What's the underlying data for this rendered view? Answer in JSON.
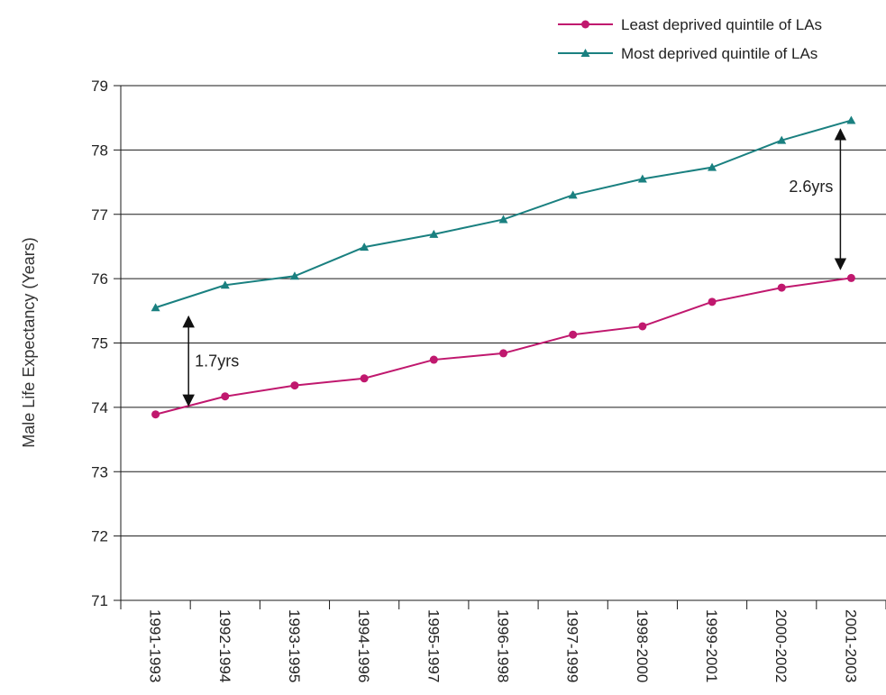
{
  "chart_data": {
    "type": "line",
    "title": "",
    "xlabel": "",
    "ylabel": "Male Life Expectancy (Years)",
    "ylim": [
      71,
      79
    ],
    "yticks": [
      71,
      72,
      73,
      74,
      75,
      76,
      77,
      78,
      79
    ],
    "grid": "horizontal",
    "legend_position": "top-right",
    "categories": [
      "1991-1993",
      "1992-1994",
      "1993-1995",
      "1994-1996",
      "1995-1997",
      "1996-1998",
      "1997-1999",
      "1998-2000",
      "1999-2001",
      "2000-2002",
      "2001-2003"
    ],
    "series": [
      {
        "name": "Least deprived quintile of LAs",
        "color": "#c0186e",
        "marker": "circle",
        "values": [
          73.89,
          74.17,
          74.34,
          74.45,
          74.74,
          74.84,
          75.13,
          75.26,
          75.64,
          75.86,
          76.01
        ]
      },
      {
        "name": "Most deprived quintile of LAs",
        "color": "#1a8080",
        "marker": "triangle",
        "values": [
          75.55,
          75.9,
          76.04,
          76.49,
          76.69,
          76.92,
          77.3,
          77.55,
          77.73,
          78.15,
          78.46
        ]
      }
    ],
    "annotations": [
      {
        "label": "1.7yrs",
        "category_index": 1,
        "from": 75.55,
        "to": 73.89
      },
      {
        "label": "2.6yrs",
        "category_index": 10,
        "from": 78.46,
        "to": 76.01
      }
    ]
  }
}
